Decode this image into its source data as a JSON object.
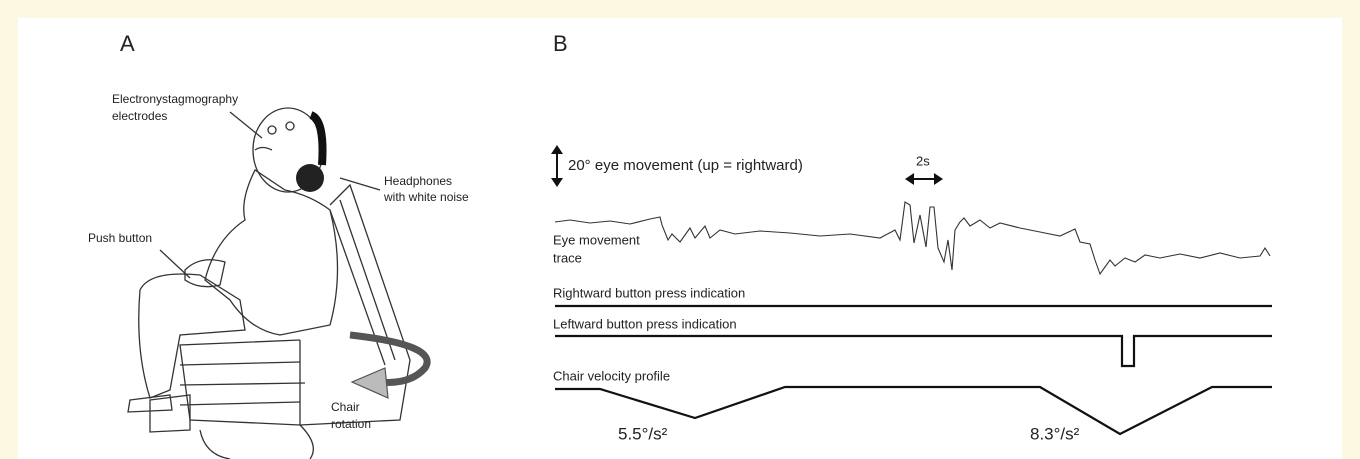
{
  "panel_a": {
    "label": "A",
    "electrodes_label": [
      "Electronystagmography",
      "electrodes"
    ],
    "headphones_label": [
      "Headphones",
      "with white noise"
    ],
    "push_button_label": "Push button",
    "chair_rotation_label": [
      "Chair",
      "rotation"
    ]
  },
  "panel_b": {
    "label": "B",
    "vertical_scale_label": "20° eye movement (up = rightward)",
    "horizontal_scale_label": "2s",
    "eye_trace_label": [
      "Eye movement",
      "trace"
    ],
    "rightward_label": "Rightward button press indication",
    "leftward_label": "Leftward button press indication",
    "chair_velocity_label": "Chair velocity profile",
    "accelerations": [
      "5.5°/s²",
      "8.3°/s²"
    ]
  }
}
